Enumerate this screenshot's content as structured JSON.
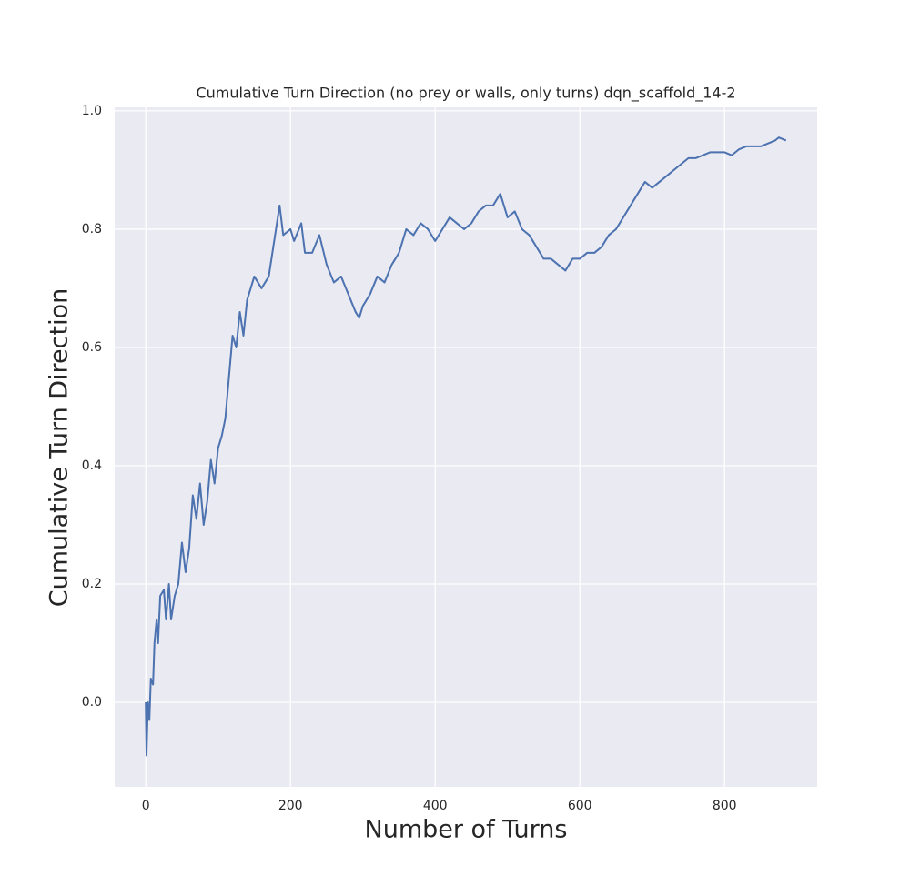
{
  "chart_data": {
    "type": "line",
    "title": "Cumulative Turn Direction (no prey or walls, only turns) dqn_scaffold_14-2",
    "x_label": "Number of Turns",
    "y_label": "Cumulative Turn Direction",
    "x": [
      0,
      1,
      3,
      5,
      7,
      10,
      12,
      15,
      17,
      20,
      25,
      28,
      32,
      35,
      40,
      45,
      50,
      55,
      60,
      65,
      70,
      75,
      80,
      85,
      90,
      95,
      100,
      105,
      110,
      115,
      120,
      125,
      130,
      135,
      140,
      150,
      160,
      170,
      180,
      185,
      190,
      200,
      205,
      215,
      220,
      230,
      240,
      250,
      260,
      270,
      280,
      290,
      295,
      300,
      310,
      320,
      330,
      340,
      350,
      360,
      370,
      380,
      390,
      400,
      410,
      420,
      430,
      440,
      450,
      460,
      470,
      480,
      490,
      500,
      510,
      520,
      530,
      540,
      550,
      560,
      570,
      580,
      590,
      600,
      610,
      620,
      630,
      640,
      650,
      660,
      670,
      680,
      690,
      700,
      710,
      720,
      730,
      740,
      750,
      760,
      770,
      780,
      790,
      800,
      810,
      820,
      830,
      840,
      850,
      860,
      870,
      875,
      885
    ],
    "series": [
      {
        "color": "#4c72b0",
        "values": [
          0,
          -0.09,
          0.0,
          -0.03,
          0.04,
          0.03,
          0.1,
          0.14,
          0.1,
          0.18,
          0.19,
          0.14,
          0.2,
          0.14,
          0.18,
          0.2,
          0.27,
          0.22,
          0.26,
          0.35,
          0.31,
          0.37,
          0.3,
          0.34,
          0.41,
          0.37,
          0.43,
          0.45,
          0.48,
          0.55,
          0.62,
          0.6,
          0.66,
          0.62,
          0.68,
          0.72,
          0.7,
          0.72,
          0.8,
          0.84,
          0.79,
          0.8,
          0.78,
          0.81,
          0.76,
          0.76,
          0.79,
          0.74,
          0.71,
          0.72,
          0.69,
          0.66,
          0.65,
          0.67,
          0.69,
          0.72,
          0.71,
          0.74,
          0.76,
          0.8,
          0.79,
          0.81,
          0.8,
          0.78,
          0.8,
          0.82,
          0.81,
          0.8,
          0.81,
          0.83,
          0.84,
          0.84,
          0.86,
          0.82,
          0.83,
          0.8,
          0.79,
          0.77,
          0.75,
          0.75,
          0.74,
          0.73,
          0.75,
          0.75,
          0.76,
          0.76,
          0.77,
          0.79,
          0.8,
          0.82,
          0.84,
          0.86,
          0.88,
          0.87,
          0.88,
          0.89,
          0.9,
          0.91,
          0.92,
          0.92,
          0.925,
          0.93,
          0.93,
          0.93,
          0.925,
          0.935,
          0.94,
          0.94,
          0.94,
          0.945,
          0.95,
          0.955,
          0.95
        ]
      }
    ],
    "xlim": [
      -43,
      928
    ],
    "ylim": [
      -0.143,
      1.006
    ],
    "xticks": [
      0,
      200,
      400,
      600,
      800
    ],
    "yticks": [
      {
        "value": 0,
        "label": "0.0"
      },
      0.2,
      0.4,
      0.6,
      0.8,
      {
        "value": 1,
        "label": "1.0"
      }
    ],
    "grid": true
  }
}
